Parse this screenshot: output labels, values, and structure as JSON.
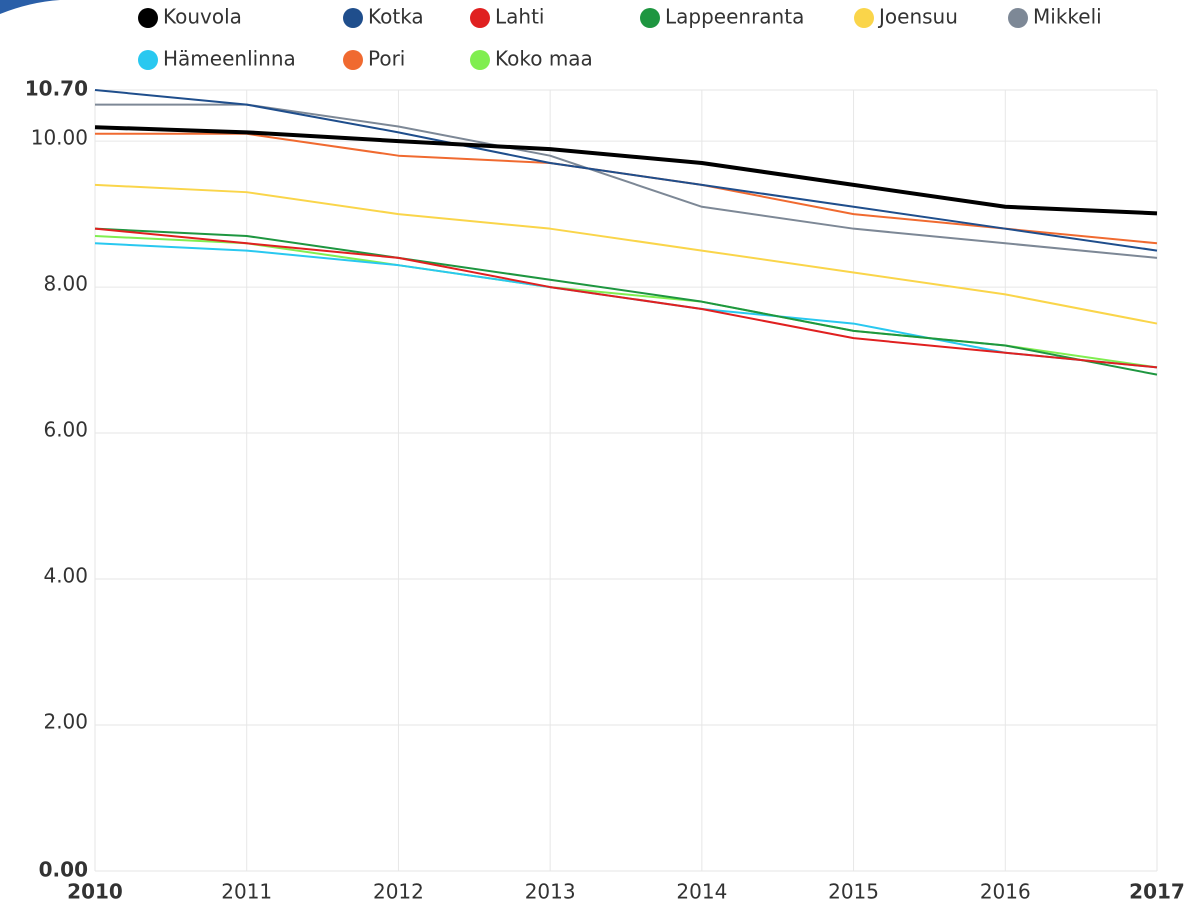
{
  "chart_data": {
    "type": "line",
    "x": [
      2010,
      2011,
      2012,
      2013,
      2014,
      2015,
      2016,
      2017
    ],
    "xlim": [
      2010,
      2017
    ],
    "xticks": [
      2010,
      2011,
      2012,
      2013,
      2014,
      2015,
      2016,
      2017
    ],
    "ylim": [
      0,
      10.7
    ],
    "yticks": [
      {
        "value": 0,
        "label": "0.00"
      },
      {
        "value": 2,
        "label": "2.00"
      },
      {
        "value": 4,
        "label": "4.00"
      },
      {
        "value": 6,
        "label": "6.00"
      },
      {
        "value": 8,
        "label": "8.00"
      },
      {
        "value": 10,
        "label": "10.00"
      },
      {
        "value": 10.7,
        "label": "10.70"
      }
    ],
    "grid": true,
    "series": [
      {
        "name": "Kouvola",
        "color": "#000000",
        "values": [
          10.19,
          10.12,
          10.0,
          9.89,
          9.7,
          9.4,
          9.1,
          9.01
        ]
      },
      {
        "name": "Kotka",
        "color": "#1f4e8c",
        "values": [
          10.7,
          10.5,
          10.12,
          9.7,
          9.4,
          9.1,
          8.8,
          8.5
        ]
      },
      {
        "name": "Lahti",
        "color": "#e02020",
        "values": [
          8.8,
          8.6,
          8.4,
          8.0,
          7.7,
          7.3,
          7.1,
          6.9
        ]
      },
      {
        "name": "Lappeenranta",
        "color": "#1e9640",
        "values": [
          8.8,
          8.7,
          8.4,
          8.1,
          7.8,
          7.4,
          7.2,
          6.8
        ]
      },
      {
        "name": "Joensuu",
        "color": "#fad54a",
        "values": [
          9.4,
          9.3,
          9.0,
          8.8,
          8.5,
          8.2,
          7.9,
          7.5
        ]
      },
      {
        "name": "Mikkeli",
        "color": "#7d8896",
        "values": [
          10.5,
          10.5,
          10.2,
          9.8,
          9.1,
          8.8,
          8.6,
          8.4
        ]
      },
      {
        "name": "Hämeenlinna",
        "color": "#29c8f0",
        "values": [
          8.6,
          8.5,
          8.3,
          8.0,
          7.7,
          7.5,
          7.1,
          6.9
        ]
      },
      {
        "name": "Pori",
        "color": "#f06a30",
        "values": [
          10.1,
          10.1,
          9.8,
          9.7,
          9.4,
          9.0,
          8.8,
          8.6
        ]
      },
      {
        "name": "Koko maa",
        "color": "#80ee50",
        "values": [
          8.7,
          8.6,
          8.3,
          8.0,
          7.8,
          7.4,
          7.2,
          6.9
        ]
      }
    ]
  }
}
